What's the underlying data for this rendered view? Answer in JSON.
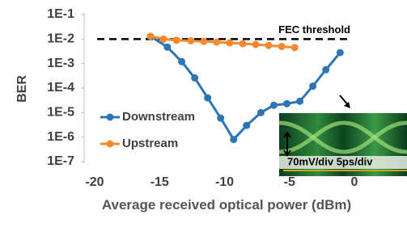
{
  "chart_data": {
    "type": "line",
    "y_label": "BER",
    "x_label": "Average received optical power (dBm)",
    "xlim": [
      -20,
      0
    ],
    "xticks": [
      -20,
      -15,
      -10,
      -5,
      0
    ],
    "ylim": [
      1e-07,
      0.1
    ],
    "yticks": [
      {
        "value": 0.1,
        "label": "1E-1"
      },
      {
        "value": 0.01,
        "label": "1E-2"
      },
      {
        "value": 0.001,
        "label": "1E-3"
      },
      {
        "value": 0.0001,
        "label": "1E-4"
      },
      {
        "value": 1e-05,
        "label": "1E-5"
      },
      {
        "value": 1e-06,
        "label": "1E-6"
      },
      {
        "value": 1e-07,
        "label": "1E-7"
      }
    ],
    "log_y": true,
    "legend": "lower left",
    "threshold": {
      "label": "FEC threshold",
      "value": 0.01
    },
    "inset_label": "70mV/div 5ps/div",
    "series": [
      {
        "name": "Downstream",
        "color": "#2e75b6",
        "x": [
          -15.7,
          -14.4,
          -13.3,
          -12.3,
          -11.3,
          -10.3,
          -9.3,
          -8.3,
          -7.2,
          -6.2,
          -5.2,
          -4.2,
          -3.2,
          -2.2,
          -1.1
        ],
        "values": [
          0.013,
          0.0047,
          0.0012,
          0.00026,
          4e-05,
          6e-06,
          8e-07,
          3e-06,
          1e-05,
          2e-05,
          2.3e-05,
          2.9e-05,
          0.00012,
          0.00056,
          0.0028
        ]
      },
      {
        "name": "Upstream",
        "color": "#f4892f",
        "x": [
          -15.7,
          -14.7,
          -13.7,
          -12.6,
          -11.6,
          -10.6,
          -9.6,
          -8.6,
          -7.6,
          -6.6,
          -5.6,
          -4.6
        ],
        "values": [
          0.013,
          0.01,
          0.009,
          0.0085,
          0.008,
          0.0075,
          0.007,
          0.0065,
          0.006,
          0.0055,
          0.005,
          0.0045
        ]
      }
    ]
  }
}
